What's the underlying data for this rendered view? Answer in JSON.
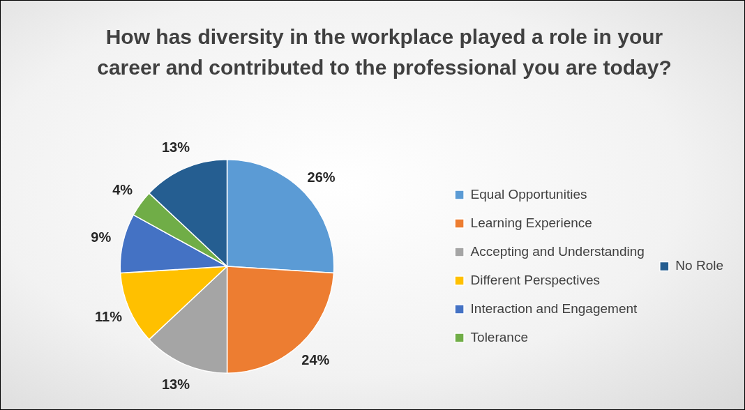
{
  "chart_data": {
    "type": "pie",
    "title": "How has diversity in the workplace played a role in your career and contributed to the professional you are today?",
    "categories": [
      "Equal Opportunities",
      "Learning Experience",
      "Accepting and Understanding",
      "Different Perspectives",
      "Interaction and Engagement",
      "Tolerance",
      "No Role"
    ],
    "values": [
      26,
      24,
      13,
      11,
      9,
      4,
      13
    ],
    "colors": [
      "#5b9bd5",
      "#ed7d31",
      "#a5a5a5",
      "#ffc000",
      "#4472c4",
      "#70ad47",
      "#255e91"
    ],
    "value_labels": [
      "26%",
      "24%",
      "13%",
      "11%",
      "9%",
      "4%",
      "13%"
    ],
    "legend": "right"
  }
}
